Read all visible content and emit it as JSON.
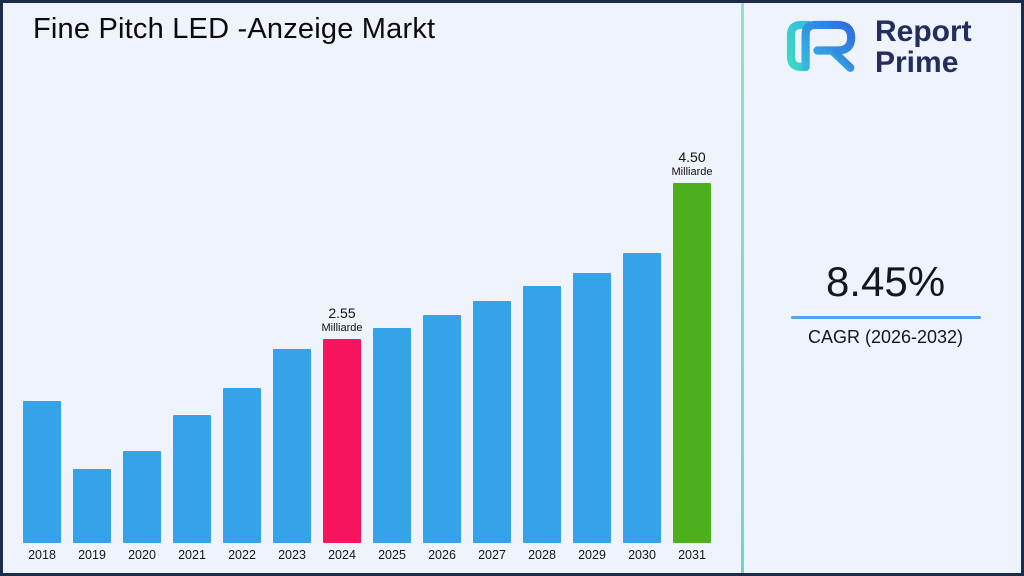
{
  "page": {
    "title": "Fine Pitch LED -Anzeige Markt"
  },
  "brand": {
    "line1": "Report",
    "line2": "Prime",
    "logo_icon": "report-prime-logo",
    "colors": {
      "teal": "#3fd8c2",
      "blue": "#2f7de1",
      "text": "#232d5e"
    }
  },
  "cagr": {
    "value": "8.45%",
    "label": "CAGR (2026-2032)",
    "underline_color": "#4da3ff"
  },
  "chart_data": {
    "type": "bar",
    "title": "Fine Pitch LED -Anzeige Markt",
    "unit": "Milliarde",
    "categories": [
      "2018",
      "2019",
      "2020",
      "2021",
      "2022",
      "2023",
      "2024",
      "2025",
      "2026",
      "2027",
      "2028",
      "2029",
      "2030",
      "2031"
    ],
    "values": [
      1.78,
      0.92,
      1.15,
      1.6,
      1.94,
      2.42,
      2.55,
      2.69,
      2.85,
      3.03,
      3.21,
      3.37,
      3.62,
      4.5
    ],
    "bar_colors": [
      "#35a3ea",
      "#35a3ea",
      "#35a3ea",
      "#35a3ea",
      "#35a3ea",
      "#35a3ea",
      "#f8135f",
      "#35a3ea",
      "#35a3ea",
      "#35a3ea",
      "#35a3ea",
      "#35a3ea",
      "#35a3ea",
      "#4bb01c"
    ],
    "annotations": [
      {
        "category": "2024",
        "value_label": "2.55",
        "unit_label": "Milliarde"
      },
      {
        "category": "2031",
        "value_label": "4.50",
        "unit_label": "Milliarde"
      }
    ],
    "xlabel": "",
    "ylabel": "",
    "ylim": [
      0,
      4.6
    ],
    "grid": false,
    "legend": false
  }
}
